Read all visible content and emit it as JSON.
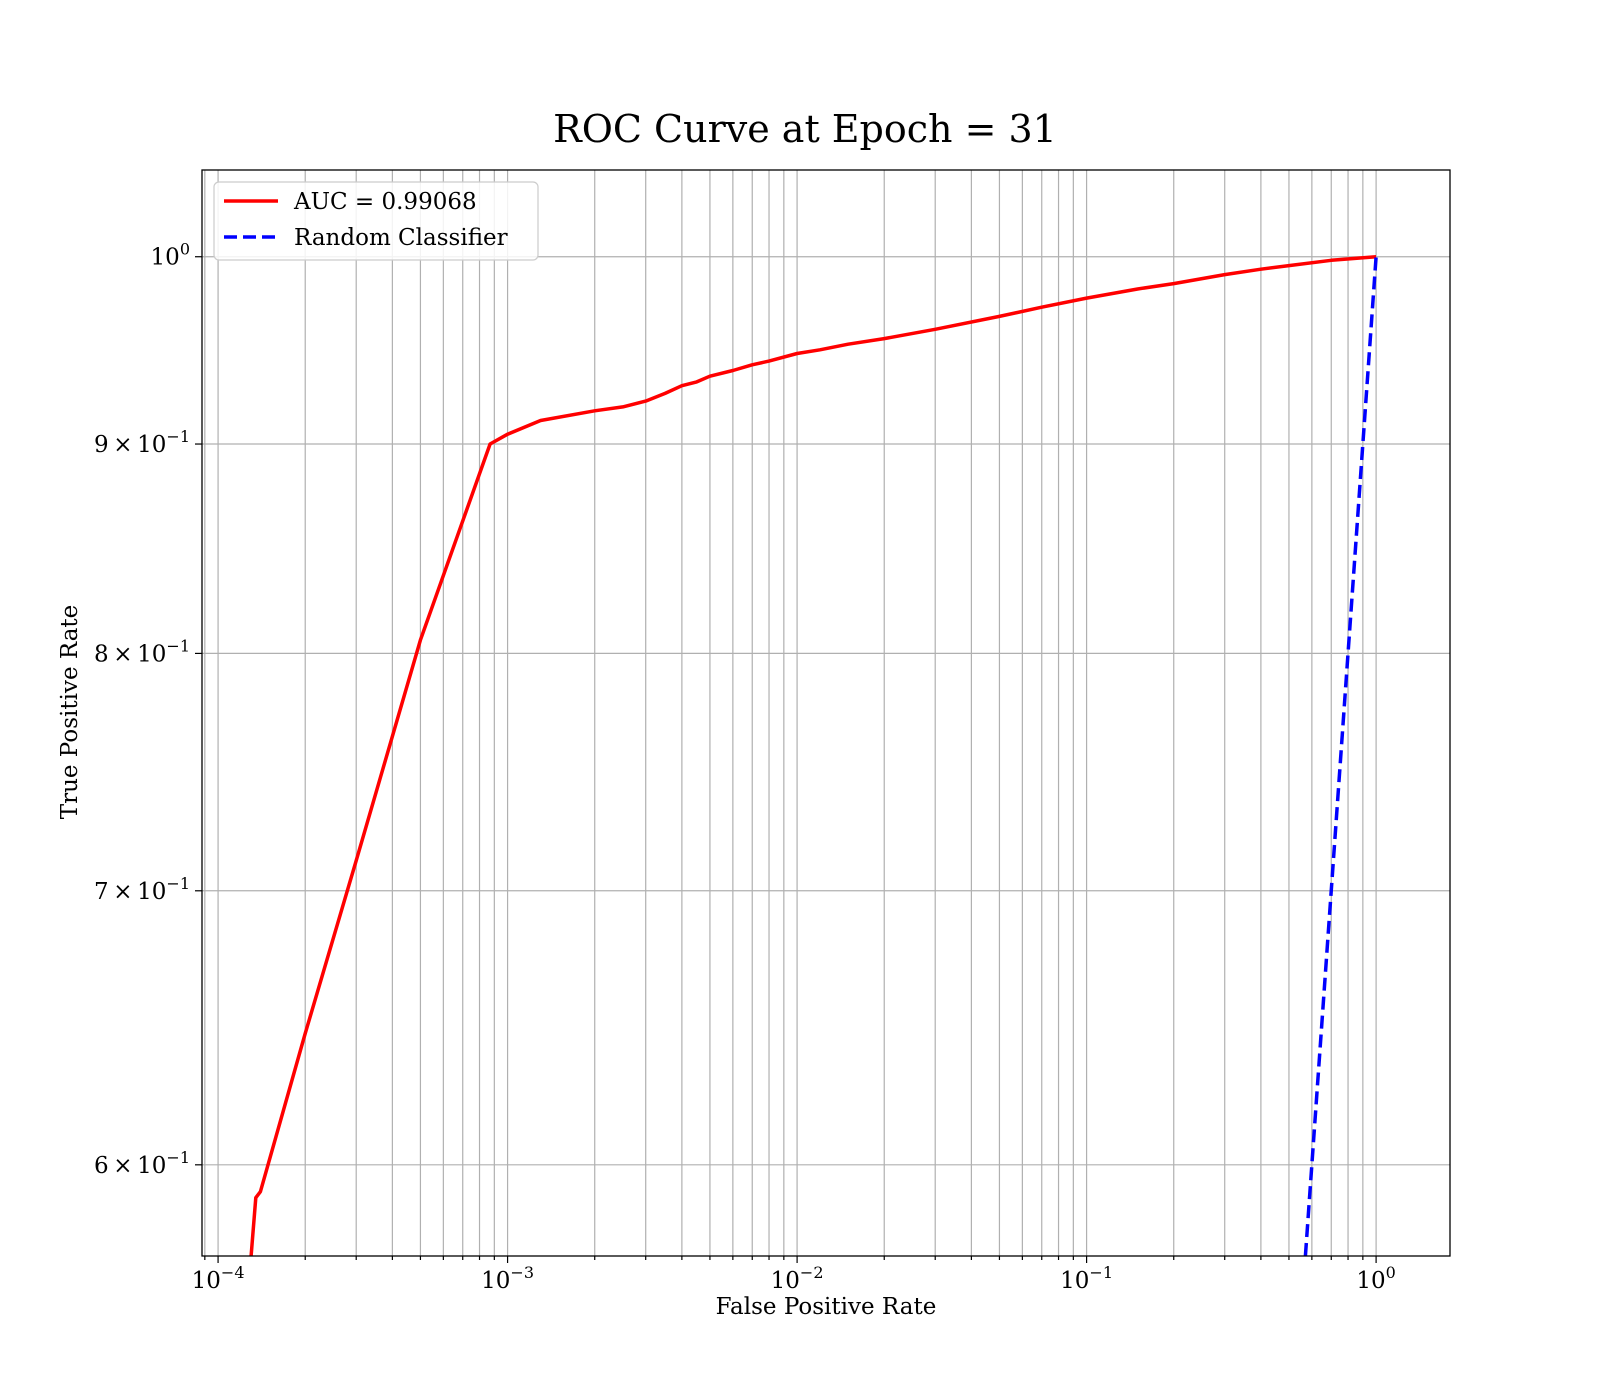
{
  "chart_data": {
    "type": "line",
    "title": "ROC Curve at Epoch = 31",
    "xlabel": "False Positive Rate",
    "ylabel": "True Positive Rate",
    "xscale": "log",
    "yscale": "log",
    "xlim": [
      8.8e-05,
      1.8
    ],
    "ylim": [
      0.57,
      1.05
    ],
    "grid": true,
    "grid_minor": true,
    "legend_position": "upper-left",
    "x_ticks": [
      {
        "value": 0.0001,
        "base": "10",
        "exp": "−4"
      },
      {
        "value": 0.001,
        "base": "10",
        "exp": "−3"
      },
      {
        "value": 0.01,
        "base": "10",
        "exp": "−2"
      },
      {
        "value": 0.1,
        "base": "10",
        "exp": "−1"
      },
      {
        "value": 1,
        "base": "10",
        "exp": "0"
      }
    ],
    "y_ticks": [
      {
        "value": 0.6,
        "mant": "6",
        "base": "10",
        "exp": "−1"
      },
      {
        "value": 0.7,
        "mant": "7",
        "base": "10",
        "exp": "−1"
      },
      {
        "value": 0.8,
        "mant": "8",
        "base": "10",
        "exp": "−1"
      },
      {
        "value": 0.9,
        "mant": "9",
        "base": "10",
        "exp": "−1"
      },
      {
        "value": 1.0,
        "mant": "",
        "base": "10",
        "exp": "0"
      }
    ],
    "series": [
      {
        "name": "AUC = 0.99068",
        "color": "#ff0000",
        "style": "solid",
        "x": [
          0.00013,
          0.000135,
          0.00014,
          0.0002,
          0.0003,
          0.0005,
          0.00087,
          0.001,
          0.0013,
          0.002,
          0.0025,
          0.003,
          0.0035,
          0.004,
          0.0045,
          0.005,
          0.006,
          0.007,
          0.008,
          0.01,
          0.012,
          0.015,
          0.02,
          0.03,
          0.05,
          0.07,
          0.1,
          0.15,
          0.2,
          0.3,
          0.4,
          0.5,
          0.7,
          1.0
        ],
        "y": [
          0.57,
          0.589,
          0.591,
          0.646,
          0.712,
          0.806,
          0.9,
          0.905,
          0.912,
          0.917,
          0.919,
          0.922,
          0.926,
          0.93,
          0.932,
          0.935,
          0.938,
          0.941,
          0.943,
          0.947,
          0.949,
          0.952,
          0.955,
          0.96,
          0.967,
          0.972,
          0.977,
          0.982,
          0.985,
          0.99,
          0.993,
          0.995,
          0.998,
          1.0
        ]
      },
      {
        "name": "Random Classifier",
        "color": "#0000ff",
        "style": "dashed",
        "x": [
          0.57,
          1.0
        ],
        "y": [
          0.57,
          1.0
        ]
      }
    ]
  }
}
